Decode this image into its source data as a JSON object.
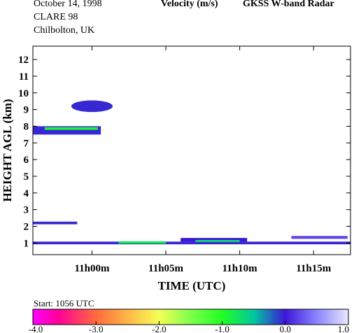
{
  "header": {
    "date": "October  14, 1998",
    "campaign": "CLARE 98",
    "location": "Chilbolton, UK",
    "quantity": "Velocity (m/s)",
    "instrument": "GKSS  W-band Radar"
  },
  "start_label": "Start: 1056 UTC",
  "chart_data": {
    "type": "heatmap",
    "xlabel": "TIME (UTC)",
    "ylabel": "HEIGHT AGL (km)",
    "x_units": "minutes after 11h00m",
    "xlim": [
      -4,
      17.5
    ],
    "ylim": [
      0.3,
      12.8
    ],
    "x_ticks": [
      {
        "value": 0,
        "label": "11h00m"
      },
      {
        "value": 5,
        "label": "11h05m"
      },
      {
        "value": 10,
        "label": "11h10m"
      },
      {
        "value": 15,
        "label": "11h15m"
      }
    ],
    "y_ticks": [
      1,
      2,
      3,
      4,
      5,
      6,
      7,
      8,
      9,
      10,
      11,
      12
    ],
    "colorbar": {
      "range": [
        -4.0,
        1.0
      ],
      "ticks": [
        "-4.0",
        "-3.0",
        "-2.0",
        "-1.0",
        "0.0",
        "1.0"
      ],
      "stops": [
        {
          "v": -4.0,
          "color": "#ff00ff"
        },
        {
          "v": -3.6,
          "color": "#ff0099"
        },
        {
          "v": -3.0,
          "color": "#ff6a3d"
        },
        {
          "v": -2.4,
          "color": "#ffc44a"
        },
        {
          "v": -2.0,
          "color": "#f5ff55"
        },
        {
          "v": -1.5,
          "color": "#7dff4a"
        },
        {
          "v": -1.0,
          "color": "#22ff22"
        },
        {
          "v": -0.5,
          "color": "#00c8a0"
        },
        {
          "v": 0.0,
          "color": "#3d16d8"
        },
        {
          "v": 0.5,
          "color": "#8a85ff"
        },
        {
          "v": 1.0,
          "color": "#e8e8ff"
        }
      ]
    },
    "features": [
      {
        "kind": "ellipse",
        "t": [
          -1.4,
          1.4
        ],
        "h": [
          8.85,
          9.55
        ],
        "velocity": -0.05
      },
      {
        "kind": "band",
        "t": [
          -4.0,
          0.6
        ],
        "h": [
          7.5,
          8.0
        ],
        "velocity": -0.05
      },
      {
        "kind": "band",
        "t": [
          -3.2,
          0.4
        ],
        "h": [
          7.78,
          7.94
        ],
        "velocity": -0.9
      },
      {
        "kind": "band",
        "t": [
          -4.0,
          -1.0
        ],
        "h": [
          2.12,
          2.28
        ],
        "velocity": -0.05
      },
      {
        "kind": "band",
        "t": [
          -4.0,
          17.5
        ],
        "h": [
          0.92,
          1.08
        ],
        "velocity": -0.05
      },
      {
        "kind": "band",
        "t": [
          1.8,
          5.0
        ],
        "h": [
          0.96,
          1.1
        ],
        "velocity": -0.8
      },
      {
        "kind": "band",
        "t": [
          6.0,
          10.5
        ],
        "h": [
          1.08,
          1.3
        ],
        "velocity": 0.0
      },
      {
        "kind": "band",
        "t": [
          7.0,
          10.0
        ],
        "h": [
          1.06,
          1.18
        ],
        "velocity": -0.7
      },
      {
        "kind": "band",
        "t": [
          13.5,
          17.3
        ],
        "h": [
          1.25,
          1.42
        ],
        "velocity": 0.2
      }
    ]
  }
}
